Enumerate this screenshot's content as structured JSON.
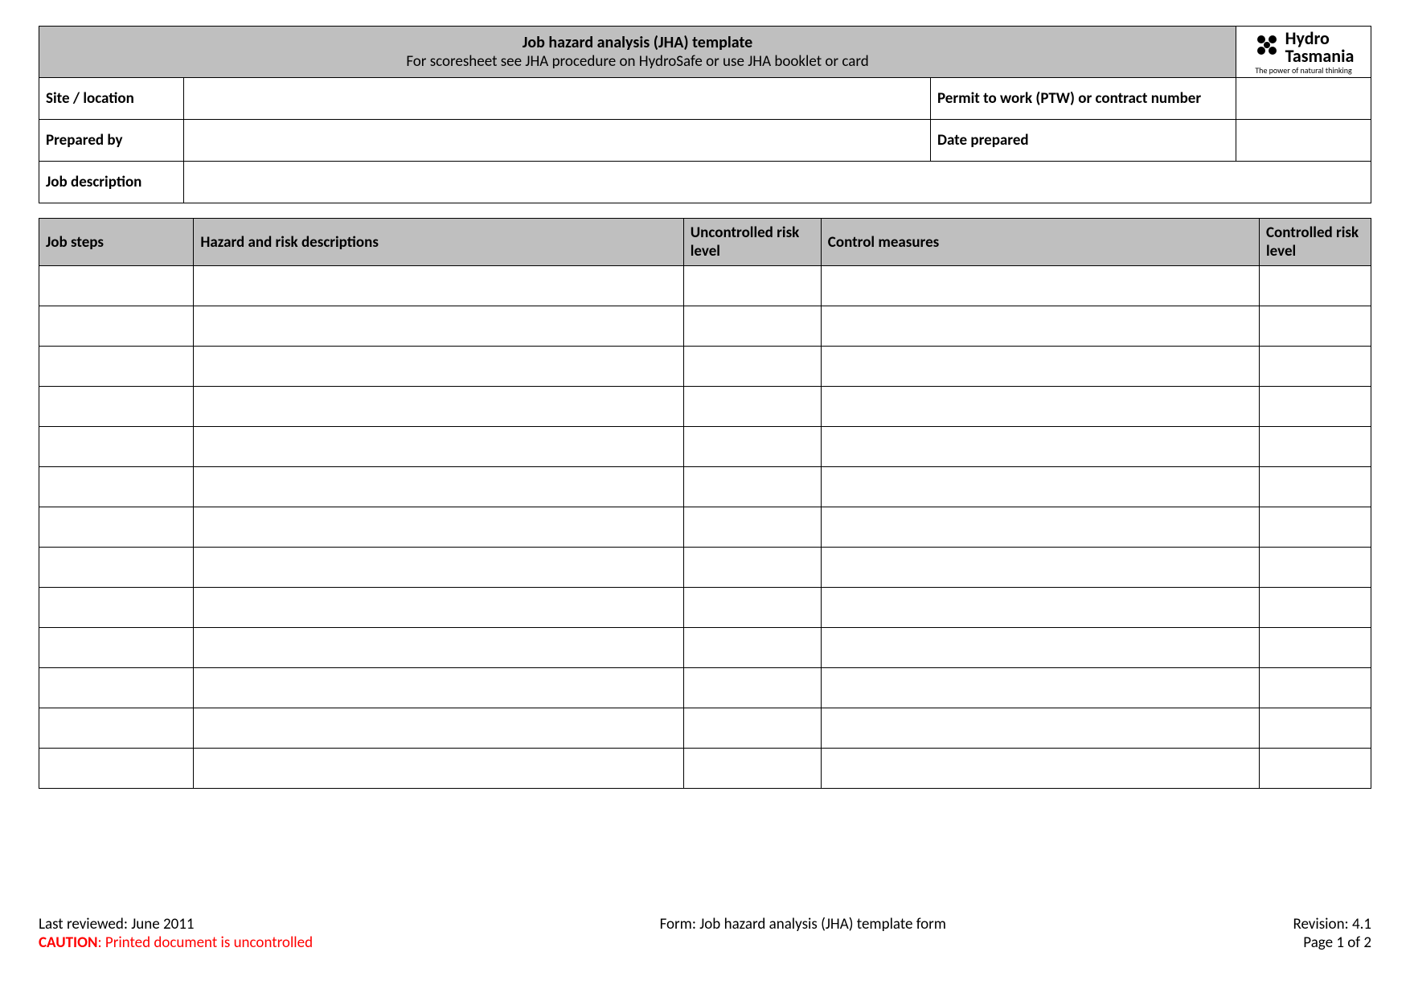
{
  "header": {
    "title": "Job hazard analysis (JHA) template",
    "subtitle": "For scoresheet see JHA procedure on HydroSafe or use JHA booklet or card",
    "logo": {
      "line1": "Hydro",
      "line2": "Tasmania",
      "tagline": "The power of natural thinking"
    }
  },
  "info": {
    "site_label": "Site / location",
    "site_value": "",
    "ptw_label": "Permit to work (PTW) or contract number",
    "ptw_value": "",
    "prepared_by_label": "Prepared by",
    "prepared_by_value": "",
    "date_label": "Date prepared",
    "date_value": "",
    "job_desc_label": "Job description",
    "job_desc_value": ""
  },
  "steps": {
    "columns": {
      "job_steps": "Job steps",
      "hazard": "Hazard and risk descriptions",
      "unrisk": "Uncontrolled risk level",
      "control": "Control measures",
      "crisk": "Controlled risk level"
    },
    "row_count": 13
  },
  "footer": {
    "reviewed_label": "Last reviewed: ",
    "reviewed_value": "June 2011",
    "caution_label": "CAUTION",
    "caution_text": ": Printed document is uncontrolled",
    "form_name": "Form: Job hazard analysis (JHA) template form",
    "revision_label": "Revision: ",
    "revision_value": "4.1",
    "page_label": "Page ",
    "page_value": "1 of 2"
  },
  "colors": {
    "header_bg": "#bfbfbf",
    "border": "#000000",
    "caution": "#ff0000",
    "background": "#ffffff"
  }
}
